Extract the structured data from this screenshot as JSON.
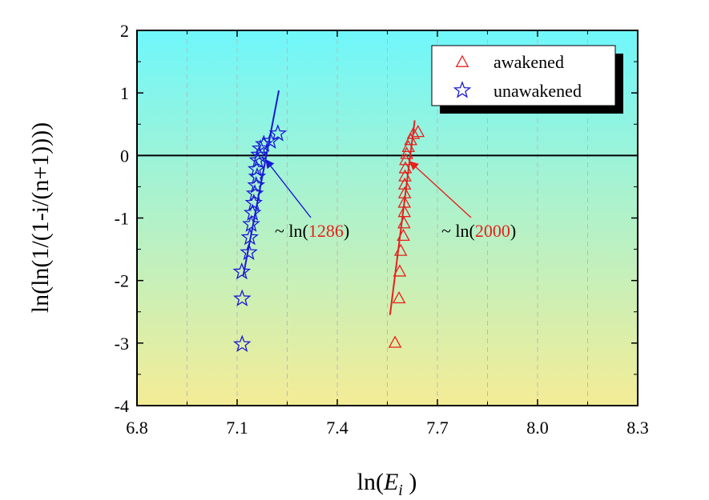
{
  "chart_data": {
    "type": "scatter",
    "title": "",
    "xlabel_prefix": "ln(",
    "xlabel_var": "E",
    "xlabel_sub": "i",
    "xlabel_suffix": " )",
    "ylabel": "ln(ln(1/(1-i/(n+1))))",
    "xlim": [
      6.8,
      8.3
    ],
    "ylim": [
      -4,
      2
    ],
    "xticks": [
      6.8,
      7.1,
      7.4,
      7.7,
      8.0,
      8.3
    ],
    "xtick_labels": [
      "6.8",
      "7.1",
      "7.4",
      "7.7",
      "8.0",
      "8.3"
    ],
    "yticks": [
      -4,
      -3,
      -2,
      -1,
      0,
      1,
      2
    ],
    "ytick_labels": [
      "-4",
      "-3",
      "-2",
      "-1",
      "0",
      "1",
      "2"
    ],
    "reference_line_y": 0,
    "background_gradient": {
      "top": "#6ff7fb",
      "bottom": "#f4ec96"
    },
    "grid": "vertical dashed",
    "legend_position": "top-right",
    "series": [
      {
        "name": "awakened",
        "marker": "triangle",
        "color": "#e8201c",
        "x": [
          7.573,
          7.585,
          7.587,
          7.59,
          7.598,
          7.6,
          7.601,
          7.601,
          7.602,
          7.602,
          7.603,
          7.604,
          7.605,
          7.608,
          7.613,
          7.62,
          7.628,
          7.642
        ],
        "y": [
          -3.0,
          -2.29,
          -1.86,
          -1.53,
          -1.29,
          -1.09,
          -0.91,
          -0.76,
          -0.61,
          -0.47,
          -0.34,
          -0.21,
          -0.08,
          0.02,
          0.13,
          0.24,
          0.34,
          0.37
        ],
        "fit": {
          "x": [
            7.558,
            7.632
          ],
          "y": [
            -2.55,
            0.56
          ]
        }
      },
      {
        "name": "unawakened",
        "marker": "star",
        "color": "#1a1ad6",
        "x": [
          7.115,
          7.115,
          7.114,
          7.135,
          7.138,
          7.142,
          7.146,
          7.15,
          7.153,
          7.157,
          7.16,
          7.158,
          7.162,
          7.166,
          7.17,
          7.18,
          7.2,
          7.222
        ],
        "y": [
          -3.02,
          -2.29,
          -1.86,
          -1.55,
          -1.31,
          -1.1,
          -0.92,
          -0.76,
          -0.61,
          -0.48,
          -0.34,
          -0.22,
          -0.08,
          0.01,
          0.11,
          0.18,
          0.23,
          0.35
        ],
        "fit": {
          "x": [
            7.118,
            7.225
          ],
          "y": [
            -1.93,
            1.04
          ]
        }
      }
    ],
    "annotations": [
      {
        "prefix": "~ ln(",
        "value": "1286",
        "suffix": ")",
        "value_color": "#e8201c",
        "arrow_color": "#1a1ad6",
        "target_x": 7.186,
        "target_y": -0.07
      },
      {
        "prefix": "~ ln(",
        "value": "2000",
        "suffix": ")",
        "value_color": "#e8201c",
        "arrow_color": "#e8201c",
        "target_x": 7.618,
        "target_y": -0.1
      }
    ]
  }
}
